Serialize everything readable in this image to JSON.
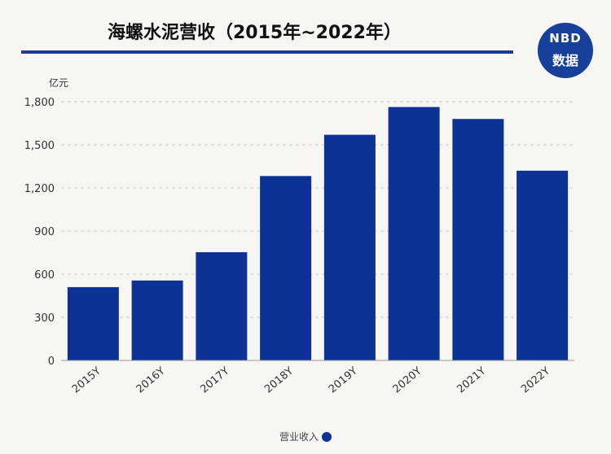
{
  "header": {
    "title": "海螺水泥营收（2015年~2022年）",
    "logo_top": "NBD",
    "logo_bottom": "数据"
  },
  "chart_data": {
    "type": "bar",
    "categories": [
      "2015Y",
      "2016Y",
      "2017Y",
      "2018Y",
      "2019Y",
      "2020Y",
      "2021Y",
      "2022Y"
    ],
    "series": [
      {
        "name": "营业收入",
        "values": [
          510,
          556,
          753,
          1283,
          1570,
          1763,
          1680,
          1320
        ]
      }
    ],
    "title": "海螺水泥营收（2015年~2022年）",
    "ylabel": "亿元",
    "ylim": [
      0,
      1800
    ],
    "yticks": [
      0,
      300,
      600,
      900,
      1200,
      1500,
      1800
    ],
    "ytick_labels": [
      "0",
      "300",
      "600",
      "900",
      "1,200",
      "1,500",
      "1,800"
    ],
    "grid": true,
    "legend_position": "bottom-center",
    "colors": {
      "bar": "#0c3296",
      "grid": "#c9c9c9",
      "axis": "#999999"
    }
  },
  "legend": {
    "label": "营业收入"
  }
}
